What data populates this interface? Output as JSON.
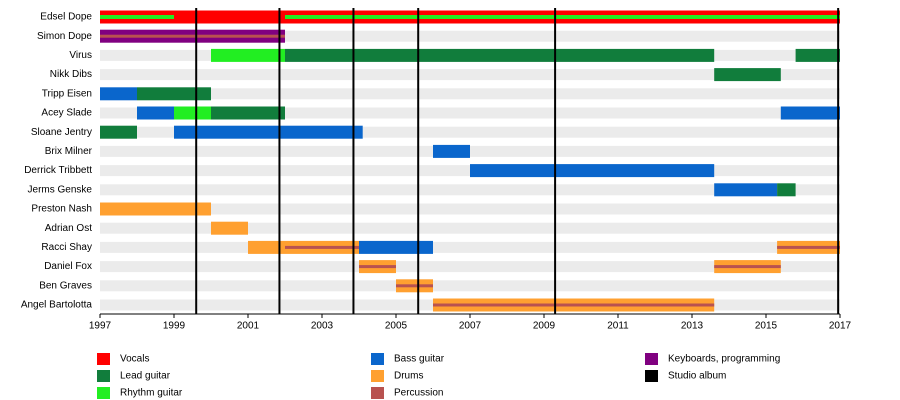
{
  "chart_data": {
    "type": "timeline",
    "xlim": [
      1997,
      2017
    ],
    "xticks": [
      1997,
      1999,
      2001,
      2003,
      2005,
      2007,
      2009,
      2011,
      2013,
      2015,
      2017
    ],
    "roles": [
      {
        "name": "Vocals",
        "color": "#ff0000"
      },
      {
        "name": "Lead guitar",
        "color": "#117d3c"
      },
      {
        "name": "Rhythm guitar",
        "color": "#22ee22"
      },
      {
        "name": "Bass guitar",
        "color": "#0a66cc"
      },
      {
        "name": "Drums",
        "color": "#ffa030"
      },
      {
        "name": "Percussion",
        "color": "#b85250"
      },
      {
        "name": "Keyboards, programming",
        "color": "#800080"
      },
      {
        "name": "Studio album",
        "color": "#000000"
      }
    ],
    "albums": [
      1999.6,
      2001.85,
      2003.85,
      2005.6,
      2009.3,
      2016.95
    ],
    "rows": [
      {
        "name": "Edsel Dope",
        "bars": [
          {
            "role": "Vocals",
            "start": 1997,
            "end": 2017
          },
          {
            "role": "Rhythm guitar",
            "start": 1997,
            "end": 1999
          },
          {
            "role": "Rhythm guitar",
            "start": 2002,
            "end": 2017
          }
        ]
      },
      {
        "name": "Simon Dope",
        "bars": [
          {
            "role": "Keyboards, programming",
            "start": 1997,
            "end": 2002
          },
          {
            "role": "Percussion",
            "start": 1997,
            "end": 2002
          }
        ]
      },
      {
        "name": "Virus",
        "bars": [
          {
            "role": "Rhythm guitar",
            "start": 2000,
            "end": 2002
          },
          {
            "role": "Lead guitar",
            "start": 2002,
            "end": 2013.6
          },
          {
            "role": "Lead guitar",
            "start": 2015.8,
            "end": 2017
          }
        ]
      },
      {
        "name": "Nikk Dibs",
        "bars": [
          {
            "role": "Lead guitar",
            "start": 2013.6,
            "end": 2015.4
          }
        ]
      },
      {
        "name": "Tripp Eisen",
        "bars": [
          {
            "role": "Bass guitar",
            "start": 1997,
            "end": 1998
          },
          {
            "role": "Lead guitar",
            "start": 1998,
            "end": 2000
          }
        ]
      },
      {
        "name": "Acey Slade",
        "bars": [
          {
            "role": "Bass guitar",
            "start": 1998,
            "end": 1999
          },
          {
            "role": "Rhythm guitar",
            "start": 1999,
            "end": 2000
          },
          {
            "role": "Lead guitar",
            "start": 2000,
            "end": 2002
          },
          {
            "role": "Bass guitar",
            "start": 2015.4,
            "end": 2017
          }
        ]
      },
      {
        "name": "Sloane Jentry",
        "bars": [
          {
            "role": "Lead guitar",
            "start": 1997,
            "end": 1998
          },
          {
            "role": "Bass guitar",
            "start": 1999,
            "end": 2004.1
          }
        ]
      },
      {
        "name": "Brix Milner",
        "bars": [
          {
            "role": "Bass guitar",
            "start": 2006,
            "end": 2007
          }
        ]
      },
      {
        "name": "Derrick Tribbett",
        "bars": [
          {
            "role": "Bass guitar",
            "start": 2007,
            "end": 2013.6
          }
        ]
      },
      {
        "name": "Jerms Genske",
        "bars": [
          {
            "role": "Bass guitar",
            "start": 2013.6,
            "end": 2015.3
          },
          {
            "role": "Lead guitar",
            "start": 2015.3,
            "end": 2015.8
          }
        ]
      },
      {
        "name": "Preston Nash",
        "bars": [
          {
            "role": "Drums",
            "start": 1997,
            "end": 2000
          }
        ]
      },
      {
        "name": "Adrian Ost",
        "bars": [
          {
            "role": "Drums",
            "start": 2000,
            "end": 2001
          }
        ]
      },
      {
        "name": "Racci Shay",
        "bars": [
          {
            "role": "Drums",
            "start": 2001,
            "end": 2004
          },
          {
            "role": "Percussion",
            "start": 2002,
            "end": 2004
          },
          {
            "role": "Bass guitar",
            "start": 2004,
            "end": 2006
          },
          {
            "role": "Drums",
            "start": 2015.3,
            "end": 2017
          },
          {
            "role": "Percussion",
            "start": 2015.3,
            "end": 2017
          }
        ]
      },
      {
        "name": "Daniel Fox",
        "bars": [
          {
            "role": "Drums",
            "start": 2004,
            "end": 2005
          },
          {
            "role": "Percussion",
            "start": 2004,
            "end": 2005
          },
          {
            "role": "Drums",
            "start": 2013.6,
            "end": 2015.4
          },
          {
            "role": "Percussion",
            "start": 2013.6,
            "end": 2015.4
          }
        ]
      },
      {
        "name": "Ben Graves",
        "bars": [
          {
            "role": "Drums",
            "start": 2005,
            "end": 2006
          },
          {
            "role": "Percussion",
            "start": 2005,
            "end": 2006
          }
        ]
      },
      {
        "name": "Angel Bartolotta",
        "bars": [
          {
            "role": "Drums",
            "start": 2006,
            "end": 2013.6
          },
          {
            "role": "Percussion",
            "start": 2006,
            "end": 2013.6
          }
        ]
      }
    ]
  }
}
